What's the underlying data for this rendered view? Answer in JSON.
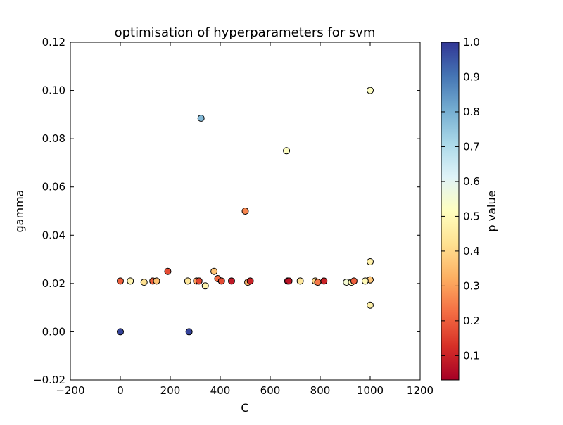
{
  "chart_data": {
    "type": "scatter",
    "title": "optimisation of hyperparameters for svm",
    "xlabel": "C",
    "ylabel": "gamma",
    "xlim": [
      -200,
      1200
    ],
    "ylim": [
      -0.02,
      0.12
    ],
    "xticks": [
      -200,
      0,
      200,
      400,
      600,
      800,
      1000,
      1200
    ],
    "xtick_labels": [
      "−200",
      "0",
      "200",
      "400",
      "600",
      "800",
      "1000",
      "1200"
    ],
    "yticks": [
      -0.02,
      0.0,
      0.02,
      0.04,
      0.06,
      0.08,
      0.1,
      0.12
    ],
    "ytick_labels": [
      "−0.02",
      "0.00",
      "0.02",
      "0.04",
      "0.06",
      "0.08",
      "0.10",
      "0.12"
    ],
    "grid": false,
    "colormap": "RdYlBu",
    "colorbar": {
      "label": "p value",
      "range": [
        0.03,
        1.0
      ],
      "ticks": [
        0.1,
        0.2,
        0.3,
        0.4,
        0.5,
        0.6,
        0.7,
        0.8,
        0.9,
        1.0
      ],
      "tick_labels": [
        "0.1",
        "0.2",
        "0.3",
        "0.4",
        "0.5",
        "0.6",
        "0.7",
        "0.8",
        "0.9",
        "1.0"
      ]
    },
    "points": [
      {
        "x": 0,
        "y": 0.0,
        "p": 0.98
      },
      {
        "x": 275,
        "y": 0.0,
        "p": 0.98
      },
      {
        "x": 323,
        "y": 0.0885,
        "p": 0.78
      },
      {
        "x": 665,
        "y": 0.075,
        "p": 0.52
      },
      {
        "x": 1000,
        "y": 0.1,
        "p": 0.52
      },
      {
        "x": 500,
        "y": 0.05,
        "p": 0.26
      },
      {
        "x": 1000,
        "y": 0.029,
        "p": 0.47
      },
      {
        "x": 1000,
        "y": 0.0215,
        "p": 0.37
      },
      {
        "x": 1000,
        "y": 0.011,
        "p": 0.47
      },
      {
        "x": 0,
        "y": 0.021,
        "p": 0.2
      },
      {
        "x": 40,
        "y": 0.021,
        "p": 0.48
      },
      {
        "x": 95,
        "y": 0.0205,
        "p": 0.42
      },
      {
        "x": 130,
        "y": 0.021,
        "p": 0.2
      },
      {
        "x": 145,
        "y": 0.021,
        "p": 0.36
      },
      {
        "x": 190,
        "y": 0.025,
        "p": 0.17
      },
      {
        "x": 270,
        "y": 0.021,
        "p": 0.44
      },
      {
        "x": 305,
        "y": 0.021,
        "p": 0.3
      },
      {
        "x": 315,
        "y": 0.021,
        "p": 0.16
      },
      {
        "x": 340,
        "y": 0.019,
        "p": 0.48
      },
      {
        "x": 375,
        "y": 0.025,
        "p": 0.36
      },
      {
        "x": 390,
        "y": 0.022,
        "p": 0.22
      },
      {
        "x": 405,
        "y": 0.021,
        "p": 0.17
      },
      {
        "x": 445,
        "y": 0.021,
        "p": 0.08
      },
      {
        "x": 510,
        "y": 0.0205,
        "p": 0.34
      },
      {
        "x": 520,
        "y": 0.021,
        "p": 0.1
      },
      {
        "x": 670,
        "y": 0.021,
        "p": 0.05
      },
      {
        "x": 675,
        "y": 0.021,
        "p": 0.07
      },
      {
        "x": 720,
        "y": 0.021,
        "p": 0.44
      },
      {
        "x": 780,
        "y": 0.021,
        "p": 0.4
      },
      {
        "x": 790,
        "y": 0.0205,
        "p": 0.24
      },
      {
        "x": 815,
        "y": 0.021,
        "p": 0.1
      },
      {
        "x": 905,
        "y": 0.0205,
        "p": 0.55
      },
      {
        "x": 925,
        "y": 0.0205,
        "p": 0.5
      },
      {
        "x": 935,
        "y": 0.021,
        "p": 0.2
      },
      {
        "x": 980,
        "y": 0.021,
        "p": 0.5
      }
    ]
  }
}
